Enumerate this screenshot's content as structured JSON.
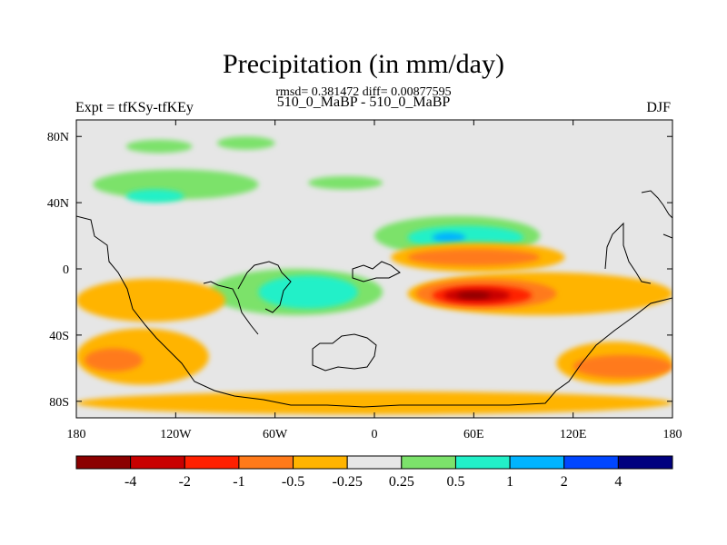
{
  "title": "Precipitation (in mm/day)",
  "stats": "rmsd= 0.381472 diff= 0.00877595",
  "subtitle": "510_0_MaBP - 510_0_MaBP",
  "left_label": "Expt = tfKSy-tfKEy",
  "right_label": "DJF",
  "chart_data": {
    "type": "heatmap",
    "projection": "cylindrical-equidistant",
    "x_range": [
      -180,
      180
    ],
    "y_range": [
      -90,
      90
    ],
    "x_ticks": [
      {
        "value": -180,
        "label": "180"
      },
      {
        "value": -120,
        "label": "120W"
      },
      {
        "value": -60,
        "label": "60W"
      },
      {
        "value": 0,
        "label": "0"
      },
      {
        "value": 60,
        "label": "60E"
      },
      {
        "value": 120,
        "label": "120E"
      },
      {
        "value": 180,
        "label": "180"
      }
    ],
    "y_ticks": [
      {
        "value": 80,
        "label": "80N"
      },
      {
        "value": 40,
        "label": "40N"
      },
      {
        "value": 0,
        "label": "0"
      },
      {
        "value": -40,
        "label": "40S"
      },
      {
        "value": -80,
        "label": "80S"
      }
    ],
    "colorbar": {
      "labels": [
        "-4",
        "-2",
        "-1",
        "-0.5",
        "-0.25",
        "0.25",
        "0.5",
        "1",
        "2",
        "4"
      ],
      "colors": [
        "#8b0000",
        "#c80000",
        "#ff2000",
        "#ff7a1a",
        "#ffb400",
        "#e6e6e6",
        "#7ce26b",
        "#22f0c8",
        "#00b4ff",
        "#0046ff",
        "#00007f"
      ]
    },
    "regions": [
      {
        "level": "0.25 to 0.5",
        "color": "#7ce26b",
        "lon": [
          -150,
          -110
        ],
        "lat": [
          70,
          78
        ]
      },
      {
        "level": "0.25 to 0.5",
        "color": "#7ce26b",
        "lon": [
          -95,
          -60
        ],
        "lat": [
          72,
          80
        ]
      },
      {
        "level": "0.25 to 0.5",
        "color": "#7ce26b",
        "lon": [
          -170,
          -70
        ],
        "lat": [
          42,
          60
        ]
      },
      {
        "level": "0.5 to 1",
        "color": "#22f0c8",
        "lon": [
          -150,
          -115
        ],
        "lat": [
          40,
          48
        ]
      },
      {
        "level": "0.25 to 0.5",
        "color": "#7ce26b",
        "lon": [
          -40,
          5
        ],
        "lat": [
          48,
          56
        ]
      },
      {
        "level": "0.25 to 0.5",
        "color": "#7ce26b",
        "lon": [
          0,
          100
        ],
        "lat": [
          8,
          32
        ]
      },
      {
        "level": "0.5 to 1",
        "color": "#22f0c8",
        "lon": [
          20,
          90
        ],
        "lat": [
          12,
          26
        ]
      },
      {
        "level": "1 to 2",
        "color": "#00b4ff",
        "lon": [
          35,
          55
        ],
        "lat": [
          16,
          22
        ]
      },
      {
        "level": "-0.5 to -0.25",
        "color": "#ffb400",
        "lon": [
          10,
          115
        ],
        "lat": [
          -2,
          16
        ]
      },
      {
        "level": "-1 to -0.5",
        "color": "#ff7a1a",
        "lon": [
          20,
          100
        ],
        "lat": [
          2,
          12
        ]
      },
      {
        "level": "-0.5 to -0.25",
        "color": "#ffb400",
        "lon": [
          20,
          180
        ],
        "lat": [
          -28,
          -2
        ]
      },
      {
        "level": "-1 to -0.5",
        "color": "#ff7a1a",
        "lon": [
          25,
          110
        ],
        "lat": [
          -24,
          -6
        ]
      },
      {
        "level": "-2 to -1",
        "color": "#ff2000",
        "lon": [
          35,
          95
        ],
        "lat": [
          -22,
          -10
        ]
      },
      {
        "level": "-4 to -2",
        "color": "#c80000",
        "lon": [
          42,
          82
        ],
        "lat": [
          -20,
          -12
        ]
      },
      {
        "level": "< -4",
        "color": "#8b0000",
        "lon": [
          50,
          70
        ],
        "lat": [
          -18,
          -14
        ]
      },
      {
        "level": "0.25 to 0.5",
        "color": "#7ce26b",
        "lon": [
          -100,
          5
        ],
        "lat": [
          -28,
          0
        ]
      },
      {
        "level": "0.5 to 1",
        "color": "#22f0c8",
        "lon": [
          -70,
          -10
        ],
        "lat": [
          -24,
          -4
        ]
      },
      {
        "level": "-0.5 to -0.25",
        "color": "#ffb400",
        "lon": [
          -180,
          -90
        ],
        "lat": [
          -32,
          -6
        ]
      },
      {
        "level": "-0.5 to -0.25",
        "color": "#ffb400",
        "lon": [
          -180,
          -100
        ],
        "lat": [
          -70,
          -36
        ]
      },
      {
        "level": "-1 to -0.5",
        "color": "#ff7a1a",
        "lon": [
          -175,
          -140
        ],
        "lat": [
          -62,
          -48
        ]
      },
      {
        "level": "-0.5 to -0.25",
        "color": "#ffb400",
        "lon": [
          -180,
          180
        ],
        "lat": [
          -88,
          -74
        ]
      },
      {
        "level": "-0.5 to -0.25",
        "color": "#ffb400",
        "lon": [
          110,
          180
        ],
        "lat": [
          -70,
          -44
        ]
      },
      {
        "level": "-1 to -0.5",
        "color": "#ff7a1a",
        "lon": [
          120,
          180
        ],
        "lat": [
          -66,
          -52
        ]
      }
    ]
  }
}
